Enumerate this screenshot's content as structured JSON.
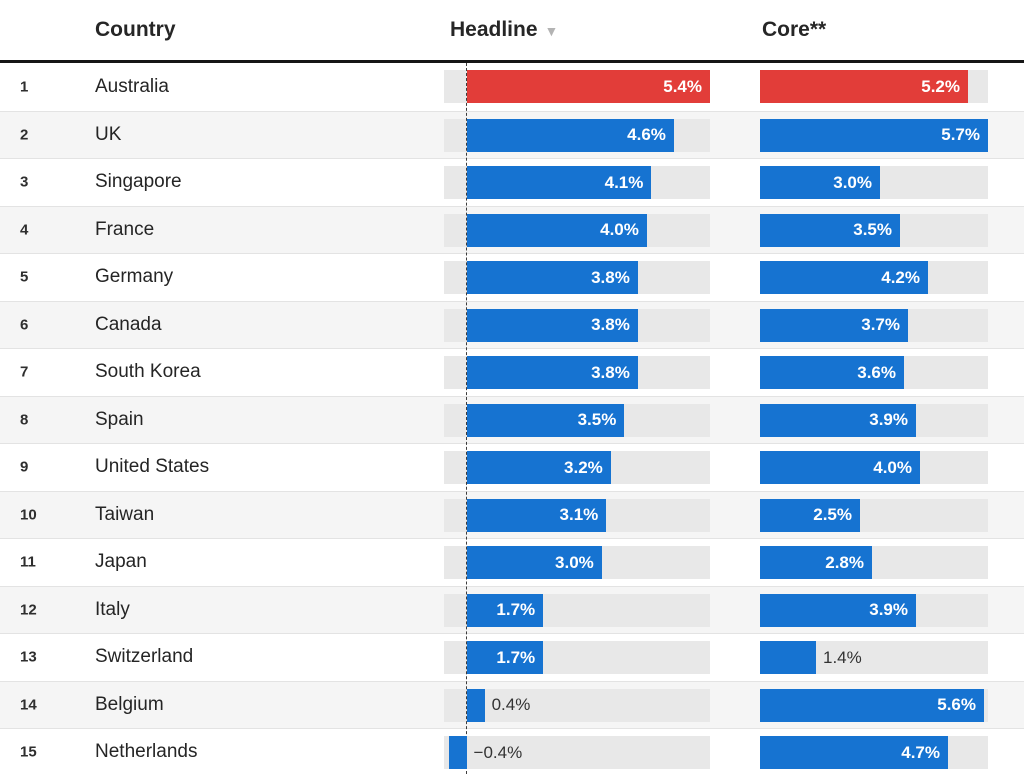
{
  "header": {
    "country": "Country",
    "headline": "Headline",
    "sort_icon": "▼",
    "core": "Core**"
  },
  "colors": {
    "bar": "#1673d1",
    "highlight": "#e23d39",
    "track": "#e8e8e8",
    "stripe": "#f5f5f5",
    "header_rule": "#161616"
  },
  "chart_data": {
    "type": "bar",
    "orientation": "horizontal",
    "title": "",
    "categories": [
      "Australia",
      "UK",
      "Singapore",
      "France",
      "Germany",
      "Canada",
      "South Korea",
      "Spain",
      "United States",
      "Taiwan",
      "Japan",
      "Italy",
      "Switzerland",
      "Belgium",
      "Netherlands"
    ],
    "series": [
      {
        "name": "Headline",
        "values": [
          5.4,
          4.6,
          4.1,
          4.0,
          3.8,
          3.8,
          3.8,
          3.5,
          3.2,
          3.1,
          3.0,
          1.7,
          1.7,
          0.4,
          -0.4
        ]
      },
      {
        "name": "Core",
        "values": [
          5.2,
          5.7,
          3.0,
          3.5,
          4.2,
          3.7,
          3.6,
          3.9,
          4.0,
          2.5,
          2.8,
          3.9,
          1.4,
          5.6,
          4.7
        ]
      }
    ],
    "highlighted_category": "Australia",
    "sorted_by": "Headline",
    "sort_order": "desc",
    "value_suffix": "%",
    "axes": {
      "headline": {
        "min": -0.5,
        "max": 5.4
      },
      "core": {
        "min": 0,
        "max": 5.7
      }
    },
    "grid": false,
    "legend": false
  },
  "table": {
    "rows": [
      {
        "rank": "1",
        "country": "Australia",
        "headline_value": 5.4,
        "headline_label": "5.4%",
        "core_value": 5.2,
        "core_label": "5.2%",
        "highlight": true
      },
      {
        "rank": "2",
        "country": "UK",
        "headline_value": 4.6,
        "headline_label": "4.6%",
        "core_value": 5.7,
        "core_label": "5.7%",
        "highlight": false
      },
      {
        "rank": "3",
        "country": "Singapore",
        "headline_value": 4.1,
        "headline_label": "4.1%",
        "core_value": 3.0,
        "core_label": "3.0%",
        "highlight": false
      },
      {
        "rank": "4",
        "country": "France",
        "headline_value": 4.0,
        "headline_label": "4.0%",
        "core_value": 3.5,
        "core_label": "3.5%",
        "highlight": false
      },
      {
        "rank": "5",
        "country": "Germany",
        "headline_value": 3.8,
        "headline_label": "3.8%",
        "core_value": 4.2,
        "core_label": "4.2%",
        "highlight": false
      },
      {
        "rank": "6",
        "country": "Canada",
        "headline_value": 3.8,
        "headline_label": "3.8%",
        "core_value": 3.7,
        "core_label": "3.7%",
        "highlight": false
      },
      {
        "rank": "7",
        "country": "South Korea",
        "headline_value": 3.8,
        "headline_label": "3.8%",
        "core_value": 3.6,
        "core_label": "3.6%",
        "highlight": false
      },
      {
        "rank": "8",
        "country": "Spain",
        "headline_value": 3.5,
        "headline_label": "3.5%",
        "core_value": 3.9,
        "core_label": "3.9%",
        "highlight": false
      },
      {
        "rank": "9",
        "country": "United States",
        "headline_value": 3.2,
        "headline_label": "3.2%",
        "core_value": 4.0,
        "core_label": "4.0%",
        "highlight": false
      },
      {
        "rank": "10",
        "country": "Taiwan",
        "headline_value": 3.1,
        "headline_label": "3.1%",
        "core_value": 2.5,
        "core_label": "2.5%",
        "highlight": false
      },
      {
        "rank": "11",
        "country": "Japan",
        "headline_value": 3.0,
        "headline_label": "3.0%",
        "core_value": 2.8,
        "core_label": "2.8%",
        "highlight": false
      },
      {
        "rank": "12",
        "country": "Italy",
        "headline_value": 1.7,
        "headline_label": "1.7%",
        "core_value": 3.9,
        "core_label": "3.9%",
        "highlight": false
      },
      {
        "rank": "13",
        "country": "Switzerland",
        "headline_value": 1.7,
        "headline_label": "1.7%",
        "core_value": 1.4,
        "core_label": "1.4%",
        "highlight": false
      },
      {
        "rank": "14",
        "country": "Belgium",
        "headline_value": 0.4,
        "headline_label": "0.4%",
        "core_value": 5.6,
        "core_label": "5.6%",
        "highlight": false
      },
      {
        "rank": "15",
        "country": "Netherlands",
        "headline_value": -0.4,
        "headline_label": "−0.4%",
        "core_value": 4.7,
        "core_label": "4.7%",
        "highlight": false
      }
    ]
  }
}
